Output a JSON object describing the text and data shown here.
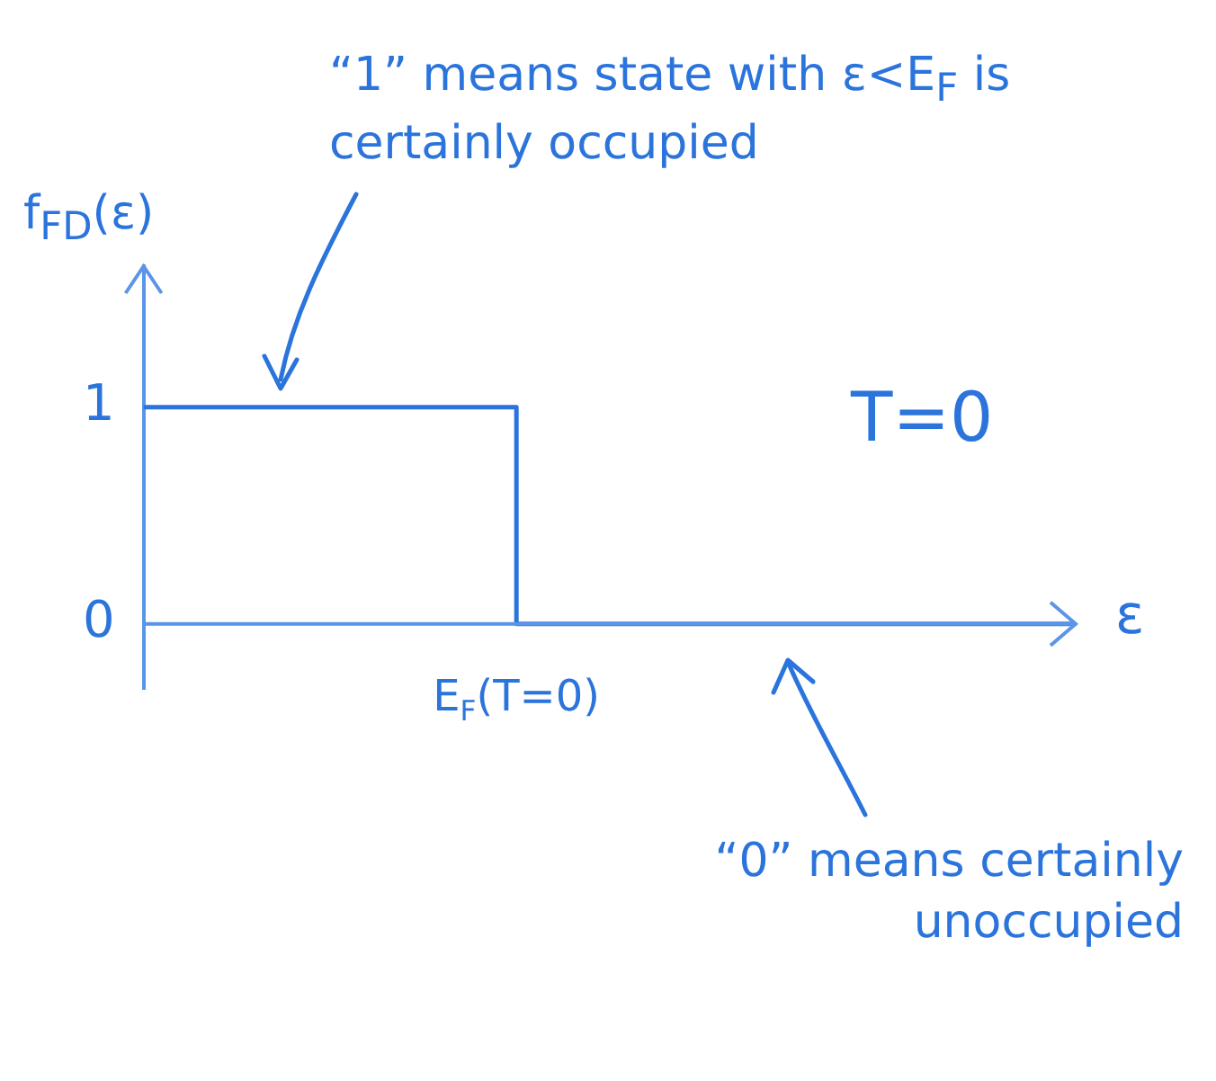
{
  "chart_data": {
    "type": "step",
    "xlabel": "ε",
    "ylabel": "f$_{FD}$(ε)",
    "categories": [
      null,
      null,
      "E$_{F}$(T=0)",
      null,
      null,
      null
    ],
    "values": [
      1,
      1,
      0,
      0,
      0,
      0
    ],
    "color": "#2b74dc",
    "ylim": [
      -0.3,
      1.65
    ],
    "yticks": [
      0,
      1
    ],
    "grid": false,
    "ref_lines": [
      {
        "axis": "y",
        "value": 0,
        "color": "#5b95e8"
      }
    ],
    "legend": false,
    "marker": "none",
    "line_style": "solid",
    "annotations": [
      "“1” means state with ε<E$_{F}$ is certainly occupied",
      "T=0",
      "“0” means certainly unoccupied"
    ]
  }
}
